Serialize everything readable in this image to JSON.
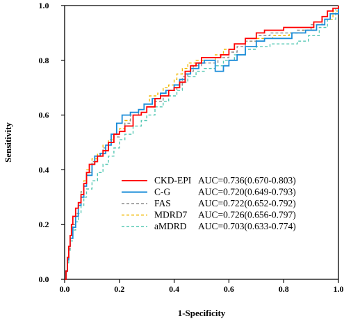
{
  "chart_data": {
    "type": "line",
    "xlabel": "1-Specificity",
    "ylabel": "Sensitivity",
    "xlim": [
      0,
      1
    ],
    "ylim": [
      0,
      1
    ],
    "x_ticks": [
      "0.0",
      "0.2",
      "0.4",
      "0.6",
      "0.8",
      "1.0"
    ],
    "y_ticks": [
      "0.0",
      "0.2",
      "0.4",
      "0.6",
      "0.8",
      "1.0"
    ],
    "grid": false,
    "legend_position": "bottom-right",
    "series": [
      {
        "name": "CKD-EPI",
        "auc": "AUC=0.736(0.670-0.803)",
        "color": "#ff0000",
        "style": "solid",
        "points": [
          [
            0,
            0
          ],
          [
            0.005,
            0.03
          ],
          [
            0.01,
            0.08
          ],
          [
            0.015,
            0.12
          ],
          [
            0.02,
            0.16
          ],
          [
            0.025,
            0.2
          ],
          [
            0.03,
            0.23
          ],
          [
            0.04,
            0.26
          ],
          [
            0.05,
            0.28
          ],
          [
            0.06,
            0.31
          ],
          [
            0.07,
            0.35
          ],
          [
            0.08,
            0.39
          ],
          [
            0.09,
            0.42
          ],
          [
            0.11,
            0.43
          ],
          [
            0.12,
            0.45
          ],
          [
            0.14,
            0.47
          ],
          [
            0.16,
            0.5
          ],
          [
            0.18,
            0.53
          ],
          [
            0.2,
            0.54
          ],
          [
            0.22,
            0.56
          ],
          [
            0.25,
            0.6
          ],
          [
            0.28,
            0.61
          ],
          [
            0.3,
            0.63
          ],
          [
            0.33,
            0.66
          ],
          [
            0.35,
            0.67
          ],
          [
            0.38,
            0.69
          ],
          [
            0.4,
            0.7
          ],
          [
            0.42,
            0.72
          ],
          [
            0.44,
            0.76
          ],
          [
            0.46,
            0.78
          ],
          [
            0.48,
            0.79
          ],
          [
            0.5,
            0.81
          ],
          [
            0.55,
            0.81
          ],
          [
            0.57,
            0.82
          ],
          [
            0.6,
            0.84
          ],
          [
            0.62,
            0.86
          ],
          [
            0.66,
            0.88
          ],
          [
            0.7,
            0.9
          ],
          [
            0.73,
            0.91
          ],
          [
            0.78,
            0.91
          ],
          [
            0.8,
            0.92
          ],
          [
            0.88,
            0.92
          ],
          [
            0.91,
            0.94
          ],
          [
            0.94,
            0.96
          ],
          [
            0.96,
            0.98
          ],
          [
            0.98,
            0.99
          ],
          [
            1,
            1
          ]
        ]
      },
      {
        "name": "C-G",
        "auc": "AUC=0.720(0.649-0.793)",
        "color": "#1a8cd8",
        "style": "solid",
        "points": [
          [
            0,
            0
          ],
          [
            0.005,
            0.03
          ],
          [
            0.01,
            0.07
          ],
          [
            0.015,
            0.12
          ],
          [
            0.02,
            0.15
          ],
          [
            0.03,
            0.19
          ],
          [
            0.04,
            0.23
          ],
          [
            0.05,
            0.27
          ],
          [
            0.06,
            0.3
          ],
          [
            0.07,
            0.34
          ],
          [
            0.08,
            0.38
          ],
          [
            0.1,
            0.42
          ],
          [
            0.11,
            0.45
          ],
          [
            0.13,
            0.46
          ],
          [
            0.15,
            0.49
          ],
          [
            0.17,
            0.53
          ],
          [
            0.19,
            0.57
          ],
          [
            0.21,
            0.6
          ],
          [
            0.24,
            0.61
          ],
          [
            0.27,
            0.62
          ],
          [
            0.29,
            0.64
          ],
          [
            0.32,
            0.66
          ],
          [
            0.35,
            0.68
          ],
          [
            0.37,
            0.69
          ],
          [
            0.4,
            0.71
          ],
          [
            0.42,
            0.73
          ],
          [
            0.44,
            0.75
          ],
          [
            0.46,
            0.77
          ],
          [
            0.49,
            0.79
          ],
          [
            0.51,
            0.8
          ],
          [
            0.55,
            0.76
          ],
          [
            0.58,
            0.78
          ],
          [
            0.6,
            0.8
          ],
          [
            0.63,
            0.82
          ],
          [
            0.66,
            0.85
          ],
          [
            0.7,
            0.87
          ],
          [
            0.73,
            0.88
          ],
          [
            0.8,
            0.88
          ],
          [
            0.83,
            0.9
          ],
          [
            0.88,
            0.91
          ],
          [
            0.92,
            0.93
          ],
          [
            0.95,
            0.95
          ],
          [
            0.97,
            0.97
          ],
          [
            1,
            1
          ]
        ]
      },
      {
        "name": "FAS",
        "auc": "AUC=0.722(0.652-0.792)",
        "color": "#8c8c8c",
        "style": "dash",
        "points": [
          [
            0,
            0
          ],
          [
            0.005,
            0.03
          ],
          [
            0.01,
            0.07
          ],
          [
            0.015,
            0.11
          ],
          [
            0.02,
            0.15
          ],
          [
            0.03,
            0.2
          ],
          [
            0.04,
            0.24
          ],
          [
            0.05,
            0.28
          ],
          [
            0.06,
            0.32
          ],
          [
            0.07,
            0.35
          ],
          [
            0.08,
            0.39
          ],
          [
            0.1,
            0.43
          ],
          [
            0.12,
            0.45
          ],
          [
            0.14,
            0.48
          ],
          [
            0.16,
            0.5
          ],
          [
            0.18,
            0.52
          ],
          [
            0.2,
            0.54
          ],
          [
            0.22,
            0.57
          ],
          [
            0.24,
            0.6
          ],
          [
            0.27,
            0.61
          ],
          [
            0.3,
            0.63
          ],
          [
            0.33,
            0.65
          ],
          [
            0.36,
            0.67
          ],
          [
            0.38,
            0.69
          ],
          [
            0.41,
            0.71
          ],
          [
            0.43,
            0.74
          ],
          [
            0.45,
            0.76
          ],
          [
            0.47,
            0.78
          ],
          [
            0.5,
            0.79
          ],
          [
            0.53,
            0.79
          ],
          [
            0.56,
            0.81
          ],
          [
            0.6,
            0.83
          ],
          [
            0.63,
            0.85
          ],
          [
            0.66,
            0.87
          ],
          [
            0.7,
            0.89
          ],
          [
            0.75,
            0.9
          ],
          [
            0.8,
            0.9
          ],
          [
            0.85,
            0.91
          ],
          [
            0.9,
            0.93
          ],
          [
            0.94,
            0.95
          ],
          [
            0.97,
            0.97
          ],
          [
            1,
            1
          ]
        ]
      },
      {
        "name": "MDRD7",
        "auc": "AUC=0.726(0.656-0.797)",
        "color": "#f0b800",
        "style": "dash",
        "points": [
          [
            0,
            0
          ],
          [
            0.005,
            0.03
          ],
          [
            0.01,
            0.08
          ],
          [
            0.015,
            0.12
          ],
          [
            0.02,
            0.16
          ],
          [
            0.03,
            0.2
          ],
          [
            0.04,
            0.24
          ],
          [
            0.05,
            0.28
          ],
          [
            0.06,
            0.32
          ],
          [
            0.07,
            0.36
          ],
          [
            0.08,
            0.4
          ],
          [
            0.1,
            0.44
          ],
          [
            0.12,
            0.46
          ],
          [
            0.14,
            0.49
          ],
          [
            0.16,
            0.51
          ],
          [
            0.18,
            0.53
          ],
          [
            0.2,
            0.55
          ],
          [
            0.22,
            0.58
          ],
          [
            0.24,
            0.61
          ],
          [
            0.27,
            0.62
          ],
          [
            0.29,
            0.64
          ],
          [
            0.31,
            0.67
          ],
          [
            0.34,
            0.68
          ],
          [
            0.36,
            0.7
          ],
          [
            0.38,
            0.71
          ],
          [
            0.4,
            0.73
          ],
          [
            0.41,
            0.75
          ],
          [
            0.43,
            0.77
          ],
          [
            0.45,
            0.79
          ],
          [
            0.48,
            0.8
          ],
          [
            0.52,
            0.8
          ],
          [
            0.55,
            0.82
          ],
          [
            0.58,
            0.84
          ],
          [
            0.62,
            0.86
          ],
          [
            0.66,
            0.87
          ],
          [
            0.7,
            0.88
          ],
          [
            0.76,
            0.89
          ],
          [
            0.82,
            0.9
          ],
          [
            0.87,
            0.91
          ],
          [
            0.91,
            0.93
          ],
          [
            0.95,
            0.95
          ],
          [
            0.98,
            0.98
          ],
          [
            1,
            1
          ]
        ]
      },
      {
        "name": "aMDRD",
        "auc": "AUC=0.703(0.633-0.774)",
        "color": "#55c8b4",
        "style": "dash",
        "points": [
          [
            0,
            0
          ],
          [
            0.005,
            0.02
          ],
          [
            0.01,
            0.06
          ],
          [
            0.015,
            0.1
          ],
          [
            0.02,
            0.14
          ],
          [
            0.03,
            0.18
          ],
          [
            0.04,
            0.21
          ],
          [
            0.05,
            0.24
          ],
          [
            0.06,
            0.27
          ],
          [
            0.07,
            0.3
          ],
          [
            0.08,
            0.33
          ],
          [
            0.1,
            0.36
          ],
          [
            0.12,
            0.39
          ],
          [
            0.14,
            0.42
          ],
          [
            0.16,
            0.45
          ],
          [
            0.18,
            0.48
          ],
          [
            0.2,
            0.51
          ],
          [
            0.22,
            0.53
          ],
          [
            0.25,
            0.56
          ],
          [
            0.28,
            0.58
          ],
          [
            0.3,
            0.6
          ],
          [
            0.33,
            0.63
          ],
          [
            0.36,
            0.65
          ],
          [
            0.38,
            0.67
          ],
          [
            0.41,
            0.69
          ],
          [
            0.43,
            0.72
          ],
          [
            0.45,
            0.74
          ],
          [
            0.48,
            0.76
          ],
          [
            0.51,
            0.77
          ],
          [
            0.55,
            0.78
          ],
          [
            0.58,
            0.8
          ],
          [
            0.62,
            0.82
          ],
          [
            0.66,
            0.84
          ],
          [
            0.7,
            0.85
          ],
          [
            0.75,
            0.86
          ],
          [
            0.8,
            0.86
          ],
          [
            0.85,
            0.87
          ],
          [
            0.89,
            0.89
          ],
          [
            0.93,
            0.92
          ],
          [
            0.96,
            0.95
          ],
          [
            0.99,
            0.99
          ],
          [
            1,
            1
          ]
        ]
      }
    ]
  }
}
